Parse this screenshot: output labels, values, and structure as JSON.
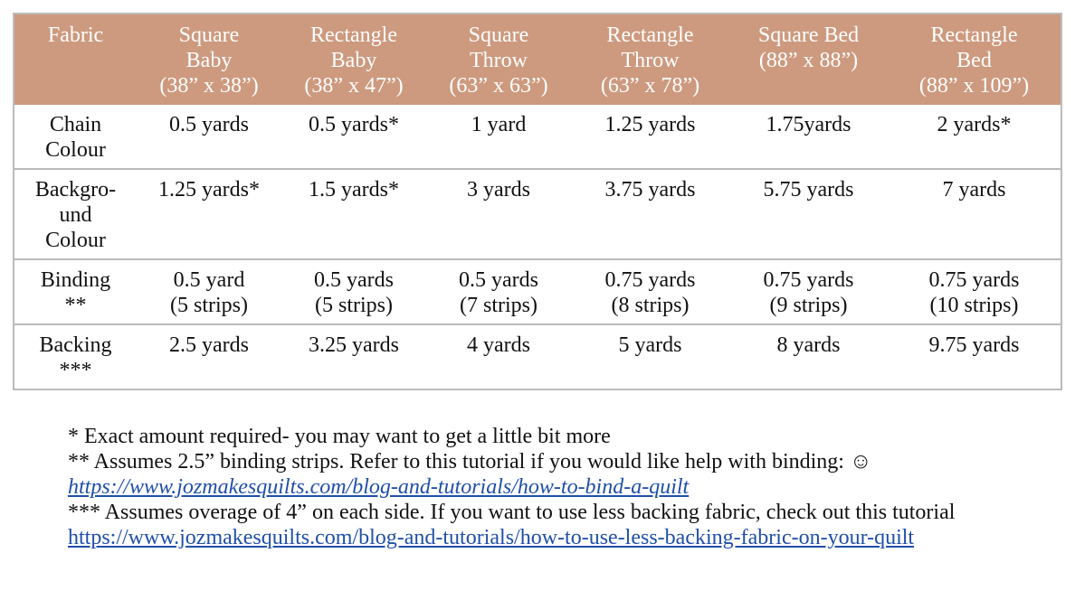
{
  "table": {
    "header": [
      [
        "Fabric"
      ],
      [
        "Square",
        "Baby",
        "(38” x 38”)"
      ],
      [
        "Rectangle",
        "Baby",
        "(38” x 47”)"
      ],
      [
        "Square",
        "Throw",
        "(63” x 63”)"
      ],
      [
        "Rectangle",
        "Throw",
        "(63” x 78”)"
      ],
      [
        "Square Bed",
        "(88” x 88”)"
      ],
      [
        "Rectangle",
        "Bed",
        "(88” x 109”)"
      ]
    ],
    "rows": [
      [
        [
          "Chain",
          "Colour"
        ],
        [
          "0.5 yards"
        ],
        [
          "0.5 yards*"
        ],
        [
          "1 yard"
        ],
        [
          "1.25 yards"
        ],
        [
          "1.75yards"
        ],
        [
          "2 yards*"
        ]
      ],
      [
        [
          "Backgro-",
          "und",
          "Colour"
        ],
        [
          "1.25 yards*"
        ],
        [
          "1.5 yards*"
        ],
        [
          "3 yards"
        ],
        [
          "3.75 yards"
        ],
        [
          "5.75 yards"
        ],
        [
          "7 yards"
        ]
      ],
      [
        [
          "Binding",
          "**"
        ],
        [
          "0.5 yard",
          "(5 strips)"
        ],
        [
          "0.5 yards",
          "(5 strips)"
        ],
        [
          "0.5 yards",
          "(7 strips)"
        ],
        [
          "0.75 yards",
          "(8 strips)"
        ],
        [
          "0.75 yards",
          "(9 strips)"
        ],
        [
          "0.75 yards",
          "(10 strips)"
        ]
      ],
      [
        [
          "Backing",
          "***"
        ],
        [
          "2.5 yards"
        ],
        [
          "3.25 yards"
        ],
        [
          "4 yards"
        ],
        [
          "5 yards"
        ],
        [
          "8 yards"
        ],
        [
          "9.75 yards"
        ]
      ]
    ]
  },
  "notes": [
    {
      "text": "* Exact amount required- you may want to get a little bit more"
    },
    {
      "text": "** Assumes 2.5” binding strips. Refer to this tutorial if you would like help with binding: ☺",
      "link": "https://www.jozmakesquilts.com/blog-and-tutorials/how-to-bind-a-quilt"
    },
    {
      "text": "*** Assumes overage of 4” on each side.  If you want to use less backing fabric, check out this tutorial",
      "link": "https://www.jozmakesquilts.com/blog-and-tutorials/how-to-use-less-backing-fabric-on-your-quilt"
    }
  ]
}
